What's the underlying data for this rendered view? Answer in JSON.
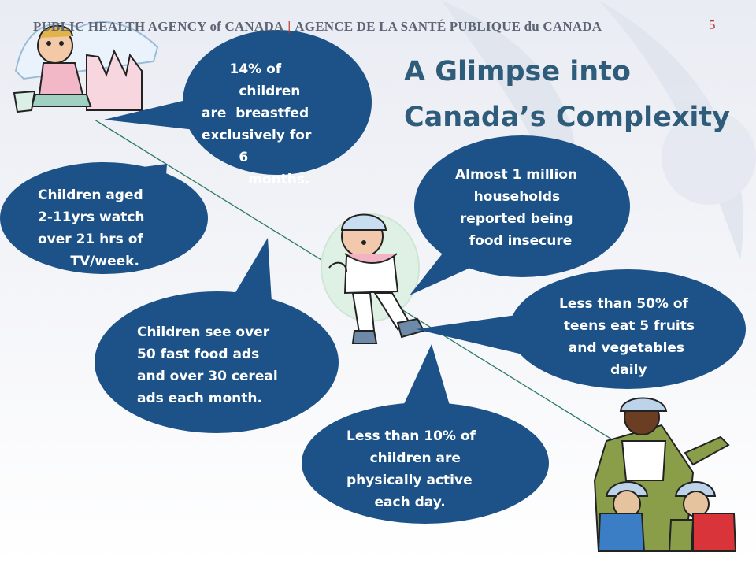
{
  "header": {
    "agency_en": "PUBLIC HEALTH AGENCY of CANADA",
    "separator": "|",
    "agency_fr": "AGENCE DE LA SANTÉ PUBLIQUE du CANADA",
    "page_number": "5"
  },
  "title": {
    "line1": "A Glimpse into",
    "line2": "Canada’s Complexity"
  },
  "colors": {
    "bubble": "#1c5288",
    "title": "#2e5c7a",
    "accent": "#c0392b"
  },
  "facts": [
    {
      "id": "breastfed",
      "text": "      14% of\n        children\nare  breastfed\nexclusively for\n        6\n          months."
    },
    {
      "id": "food_insecure",
      "text": "Almost 1 million\n    households\n reported being\n   food insecure"
    },
    {
      "id": "tv",
      "text": "Children aged\n2-11yrs watch\nover 21 hrs of\n       TV/week."
    },
    {
      "id": "fruits",
      "text": "Less than 50% of\n teens eat 5 fruits\n  and vegetables\n           daily"
    },
    {
      "id": "ads",
      "text": "Children see over\n50 fast food ads\nand over 30 cereal\nads each month."
    },
    {
      "id": "active",
      "text": "Less than 10% of\n     children are\nphysically active\n      each day."
    }
  ],
  "illustrations": [
    "sandcastle-child-icon",
    "rollerblading-child-icon",
    "adult-with-children-icon"
  ]
}
